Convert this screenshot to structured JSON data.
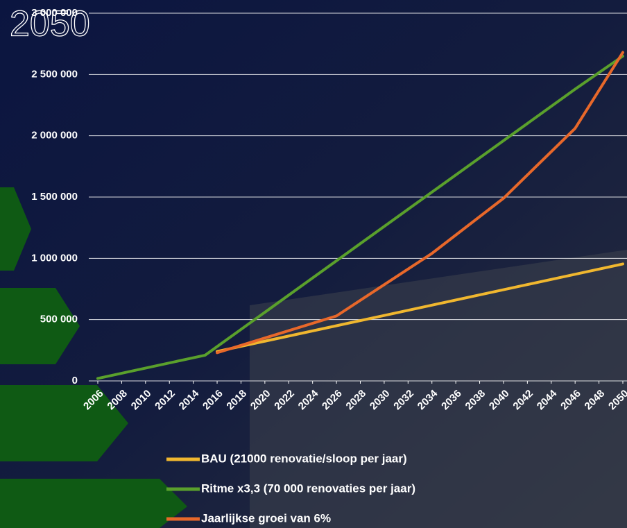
{
  "chart_data": {
    "type": "line",
    "title": "2050",
    "x": [
      2006,
      2015,
      2016,
      2020,
      2026,
      2030,
      2034,
      2040,
      2046,
      2050
    ],
    "xlim": [
      2006,
      2050
    ],
    "xticks": [
      2006,
      2008,
      2010,
      2012,
      2014,
      2016,
      2018,
      2020,
      2022,
      2024,
      2026,
      2028,
      2030,
      2032,
      2034,
      2036,
      2038,
      2040,
      2042,
      2044,
      2046,
      2048,
      2050
    ],
    "ylim": [
      0,
      3000000
    ],
    "yticks": [
      {
        "value": 0,
        "label": "0"
      },
      {
        "value": 500000,
        "label": "500 000"
      },
      {
        "value": 1000000,
        "label": "1 000 000"
      },
      {
        "value": 1500000,
        "label": "1 500 000"
      },
      {
        "value": 2000000,
        "label": "2 000 000"
      },
      {
        "value": 2500000,
        "label": "2 500 000"
      },
      {
        "value": 3000000,
        "label": "3 000 000"
      }
    ],
    "grid": true,
    "legend": "bottom",
    "series": [
      {
        "name": "BAU (21000 renovatie/sloop per jaar)",
        "color": "#f0b72f",
        "values": [
          null,
          null,
          240000,
          324000,
          450000,
          534000,
          618000,
          744000,
          870000,
          954000
        ]
      },
      {
        "name": "Ritme x3,3 (70 000 renovaties per jaar)",
        "color": "#5aa02c",
        "values": [
          20000,
          210000,
          280000,
          560000,
          980000,
          1260000,
          1540000,
          1960000,
          2380000,
          2650000
        ]
      },
      {
        "name": "Jaarlijkse groei van 6%",
        "color": "#e8682a",
        "values": [
          null,
          null,
          230000,
          350000,
          530000,
          785000,
          1040000,
          1490000,
          2060000,
          2680000
        ]
      }
    ]
  }
}
